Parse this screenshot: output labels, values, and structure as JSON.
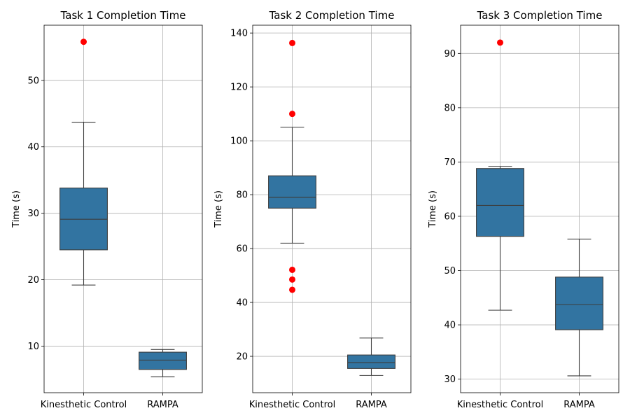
{
  "chart_data": [
    {
      "type": "box",
      "title": "Task 1 Completion Time",
      "ylabel": "Time (s)",
      "xlabel": "",
      "categories": [
        "Kinesthetic Control",
        "RAMPA"
      ],
      "ylim": [
        3,
        58.3
      ],
      "yticks": [
        10,
        20,
        30,
        40,
        50
      ],
      "grid": true,
      "boxes": [
        {
          "category": "Kinesthetic Control",
          "whisker_low": 19.2,
          "q1": 24.5,
          "median": 29.1,
          "q3": 33.8,
          "whisker_high": 43.7,
          "outliers": [
            55.8
          ]
        },
        {
          "category": "RAMPA",
          "whisker_low": 5.4,
          "q1": 6.5,
          "median": 7.9,
          "q3": 9.1,
          "whisker_high": 9.5,
          "outliers": []
        }
      ]
    },
    {
      "type": "box",
      "title": "Task 2 Completion Time",
      "ylabel": "Time (s)",
      "xlabel": "",
      "categories": [
        "Kinesthetic Control",
        "RAMPA"
      ],
      "ylim": [
        6.5,
        142.9
      ],
      "yticks": [
        20,
        40,
        60,
        80,
        100,
        120,
        140
      ],
      "grid": true,
      "boxes": [
        {
          "category": "Kinesthetic Control",
          "whisker_low": 62,
          "q1": 75,
          "median": 79,
          "q3": 87,
          "whisker_high": 105,
          "outliers": [
            136.3,
            110,
            52.1,
            48.5,
            44.7
          ]
        },
        {
          "category": "RAMPA",
          "whisker_low": 12.9,
          "q1": 15.5,
          "median": 17.7,
          "q3": 20.5,
          "whisker_high": 26.8,
          "outliers": []
        }
      ]
    },
    {
      "type": "box",
      "title": "Task 3 Completion Time",
      "ylabel": "Time (s)",
      "xlabel": "",
      "categories": [
        "Kinesthetic Control",
        "RAMPA"
      ],
      "ylim": [
        27.5,
        95.2
      ],
      "yticks": [
        30,
        40,
        50,
        60,
        70,
        80,
        90
      ],
      "grid": true,
      "boxes": [
        {
          "category": "Kinesthetic Control",
          "whisker_low": 42.7,
          "q1": 56.3,
          "median": 62,
          "q3": 68.8,
          "whisker_high": 69.2,
          "outliers": [
            92
          ]
        },
        {
          "category": "RAMPA",
          "whisker_low": 30.6,
          "q1": 39.1,
          "median": 43.7,
          "q3": 48.8,
          "whisker_high": 55.8,
          "outliers": []
        }
      ]
    }
  ],
  "colors": {
    "box_fill": "#3274a1",
    "box_edge": "#3d3d3d",
    "outlier": "#ff0000",
    "grid": "#b0b0b0",
    "axis": "#000000"
  }
}
